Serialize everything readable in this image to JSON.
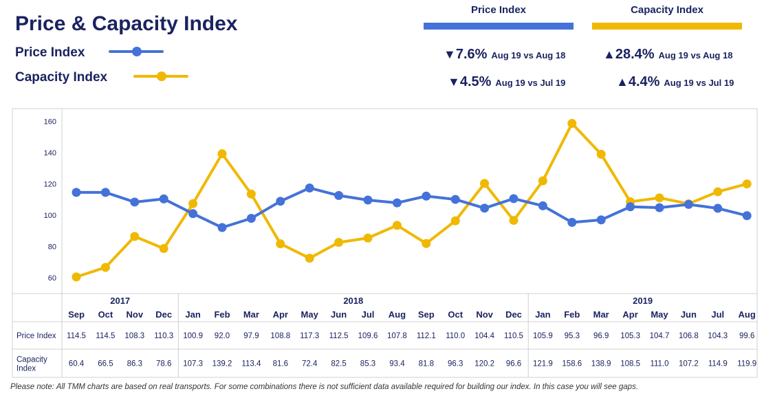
{
  "title": "Price & Capacity Index",
  "legend": {
    "price_label": "Price Index",
    "capacity_label": "Capacity Index"
  },
  "colors": {
    "price": "#4472d8",
    "capacity": "#f0b800",
    "text": "#1a2360",
    "grid": "#d0d0d0"
  },
  "kpis": {
    "price": {
      "header": "Price Index",
      "yoy_arrow": "▼",
      "yoy_value": "7.6%",
      "yoy_label": "Aug 19 vs Aug 18",
      "mom_arrow": "▼",
      "mom_value": "4.5%",
      "mom_label": "Aug 19 vs Jul 19"
    },
    "capacity": {
      "header": "Capacity Index",
      "yoy_arrow": "▲",
      "yoy_value": "28.4%",
      "yoy_label": "Aug 19 vs Aug 18",
      "mom_arrow": "▲",
      "mom_value": "4.4%",
      "mom_label": "Aug 19 vs Jul 19"
    }
  },
  "chart_data": {
    "type": "line",
    "ylim": [
      52,
      165
    ],
    "yticks": [
      60,
      80,
      100,
      120,
      140,
      160
    ],
    "years": [
      {
        "label": "2017",
        "start": 0,
        "end": 3
      },
      {
        "label": "2018",
        "start": 4,
        "end": 15
      },
      {
        "label": "2019",
        "start": 16,
        "end": 23
      }
    ],
    "categories": [
      "Sep",
      "Oct",
      "Nov",
      "Dec",
      "Jan",
      "Feb",
      "Mar",
      "Apr",
      "May",
      "Jun",
      "Jul",
      "Aug",
      "Sep",
      "Oct",
      "Nov",
      "Dec",
      "Jan",
      "Feb",
      "Mar",
      "Apr",
      "May",
      "Jun",
      "Jul",
      "Aug"
    ],
    "series": [
      {
        "name": "Price Index",
        "table_label": "Price Index",
        "color": "#4472d8",
        "values": [
          114.5,
          114.5,
          108.3,
          110.3,
          100.9,
          92.0,
          97.9,
          108.8,
          117.3,
          112.5,
          109.6,
          107.8,
          112.1,
          110.0,
          104.4,
          110.5,
          105.9,
          95.3,
          96.9,
          105.3,
          104.7,
          106.8,
          104.3,
          99.6
        ]
      },
      {
        "name": "Capacity Index",
        "table_label": [
          "Capacity",
          "Index"
        ],
        "color": "#f0b800",
        "values": [
          60.4,
          66.5,
          86.3,
          78.6,
          107.3,
          139.2,
          113.4,
          81.6,
          72.4,
          82.5,
          85.3,
          93.4,
          81.8,
          96.3,
          120.2,
          96.6,
          121.9,
          158.6,
          138.9,
          108.5,
          111.0,
          107.2,
          114.9,
          119.9
        ]
      }
    ]
  },
  "footnote": "Please note: All TMM charts are based on real transports. For some combinations there is not sufficient data available required for building our index. In this case you will see gaps."
}
